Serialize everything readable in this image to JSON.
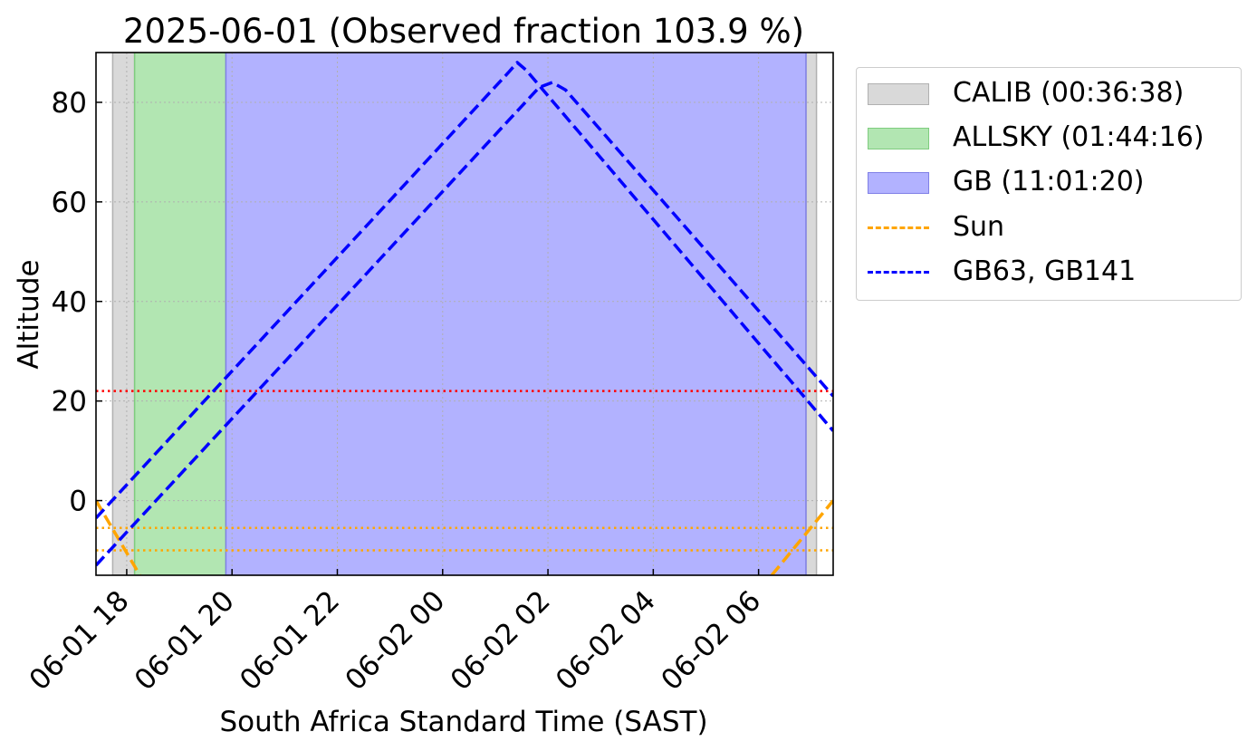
{
  "chart_data": {
    "type": "area",
    "title": "2025-06-01 (Observed fraction 103.9 %)",
    "xlabel": "South Africa Standard Time (SAST)",
    "ylabel": "Altitude",
    "xlim": [
      "2025-06-01T17:25",
      "2025-06-02T07:25"
    ],
    "ylim": [
      -15,
      90
    ],
    "yticks": [
      0,
      20,
      40,
      60,
      80
    ],
    "xticks": [
      {
        "t": "2025-06-01T18:00",
        "label": "06-01 18"
      },
      {
        "t": "2025-06-01T20:00",
        "label": "06-01 20"
      },
      {
        "t": "2025-06-01T22:00",
        "label": "06-01 22"
      },
      {
        "t": "2025-06-02T00:00",
        "label": "06-02 00"
      },
      {
        "t": "2025-06-02T02:00",
        "label": "06-02 02"
      },
      {
        "t": "2025-06-02T04:00",
        "label": "06-02 04"
      },
      {
        "t": "2025-06-02T06:00",
        "label": "06-02 06"
      }
    ],
    "grid": true,
    "legend_position": "outside-right",
    "spans": [
      {
        "name": "CALIB (00:36:38)",
        "color": "#d9d9d9",
        "edge": "#b0b0b0",
        "intervals": [
          [
            "2025-06-01T17:44",
            "2025-06-01T18:09"
          ],
          [
            "2025-06-02T06:54",
            "2025-06-02T07:06"
          ]
        ]
      },
      {
        "name": "ALLSKY (01:44:16)",
        "color": "#b2e6b2",
        "edge": "#7fcc7f",
        "intervals": [
          [
            "2025-06-01T18:09",
            "2025-06-01T19:53"
          ]
        ]
      },
      {
        "name": "GB (11:01:20)",
        "color": "#b2b2ff",
        "edge": "#8080e6",
        "intervals": [
          [
            "2025-06-01T19:53",
            "2025-06-02T06:54"
          ]
        ]
      }
    ],
    "hlines": [
      {
        "y": 22,
        "color": "#ff0000"
      },
      {
        "y": -5.5,
        "color": "#ffa500"
      },
      {
        "y": -10,
        "color": "#ffa500"
      }
    ],
    "series": [
      {
        "name": "Sun",
        "color": "#ffa500",
        "segments": [
          {
            "x": [
              "2025-06-01T17:25",
              "2025-06-01T18:15"
            ],
            "y": [
              0,
              -15
            ]
          },
          {
            "x": [
              "2025-06-02T06:15",
              "2025-06-02T07:25"
            ],
            "y": [
              -15,
              0
            ]
          }
        ]
      },
      {
        "name": "GB63, GB141",
        "color": "#0000ff",
        "lines": [
          {
            "x": [
              "2025-06-01T17:25",
              "2025-06-02T01:15",
              "2025-06-02T01:25",
              "2025-06-02T01:35",
              "2025-06-02T07:25"
            ],
            "y": [
              -3.5,
              86.0,
              88.0,
              86.5,
              14.0
            ]
          },
          {
            "x": [
              "2025-06-01T17:25",
              "2025-06-02T01:50",
              "2025-06-02T02:05",
              "2025-06-02T02:20",
              "2025-06-02T07:25"
            ],
            "y": [
              -13.0,
              83.0,
              84.0,
              82.5,
              21.0
            ]
          }
        ]
      }
    ]
  }
}
